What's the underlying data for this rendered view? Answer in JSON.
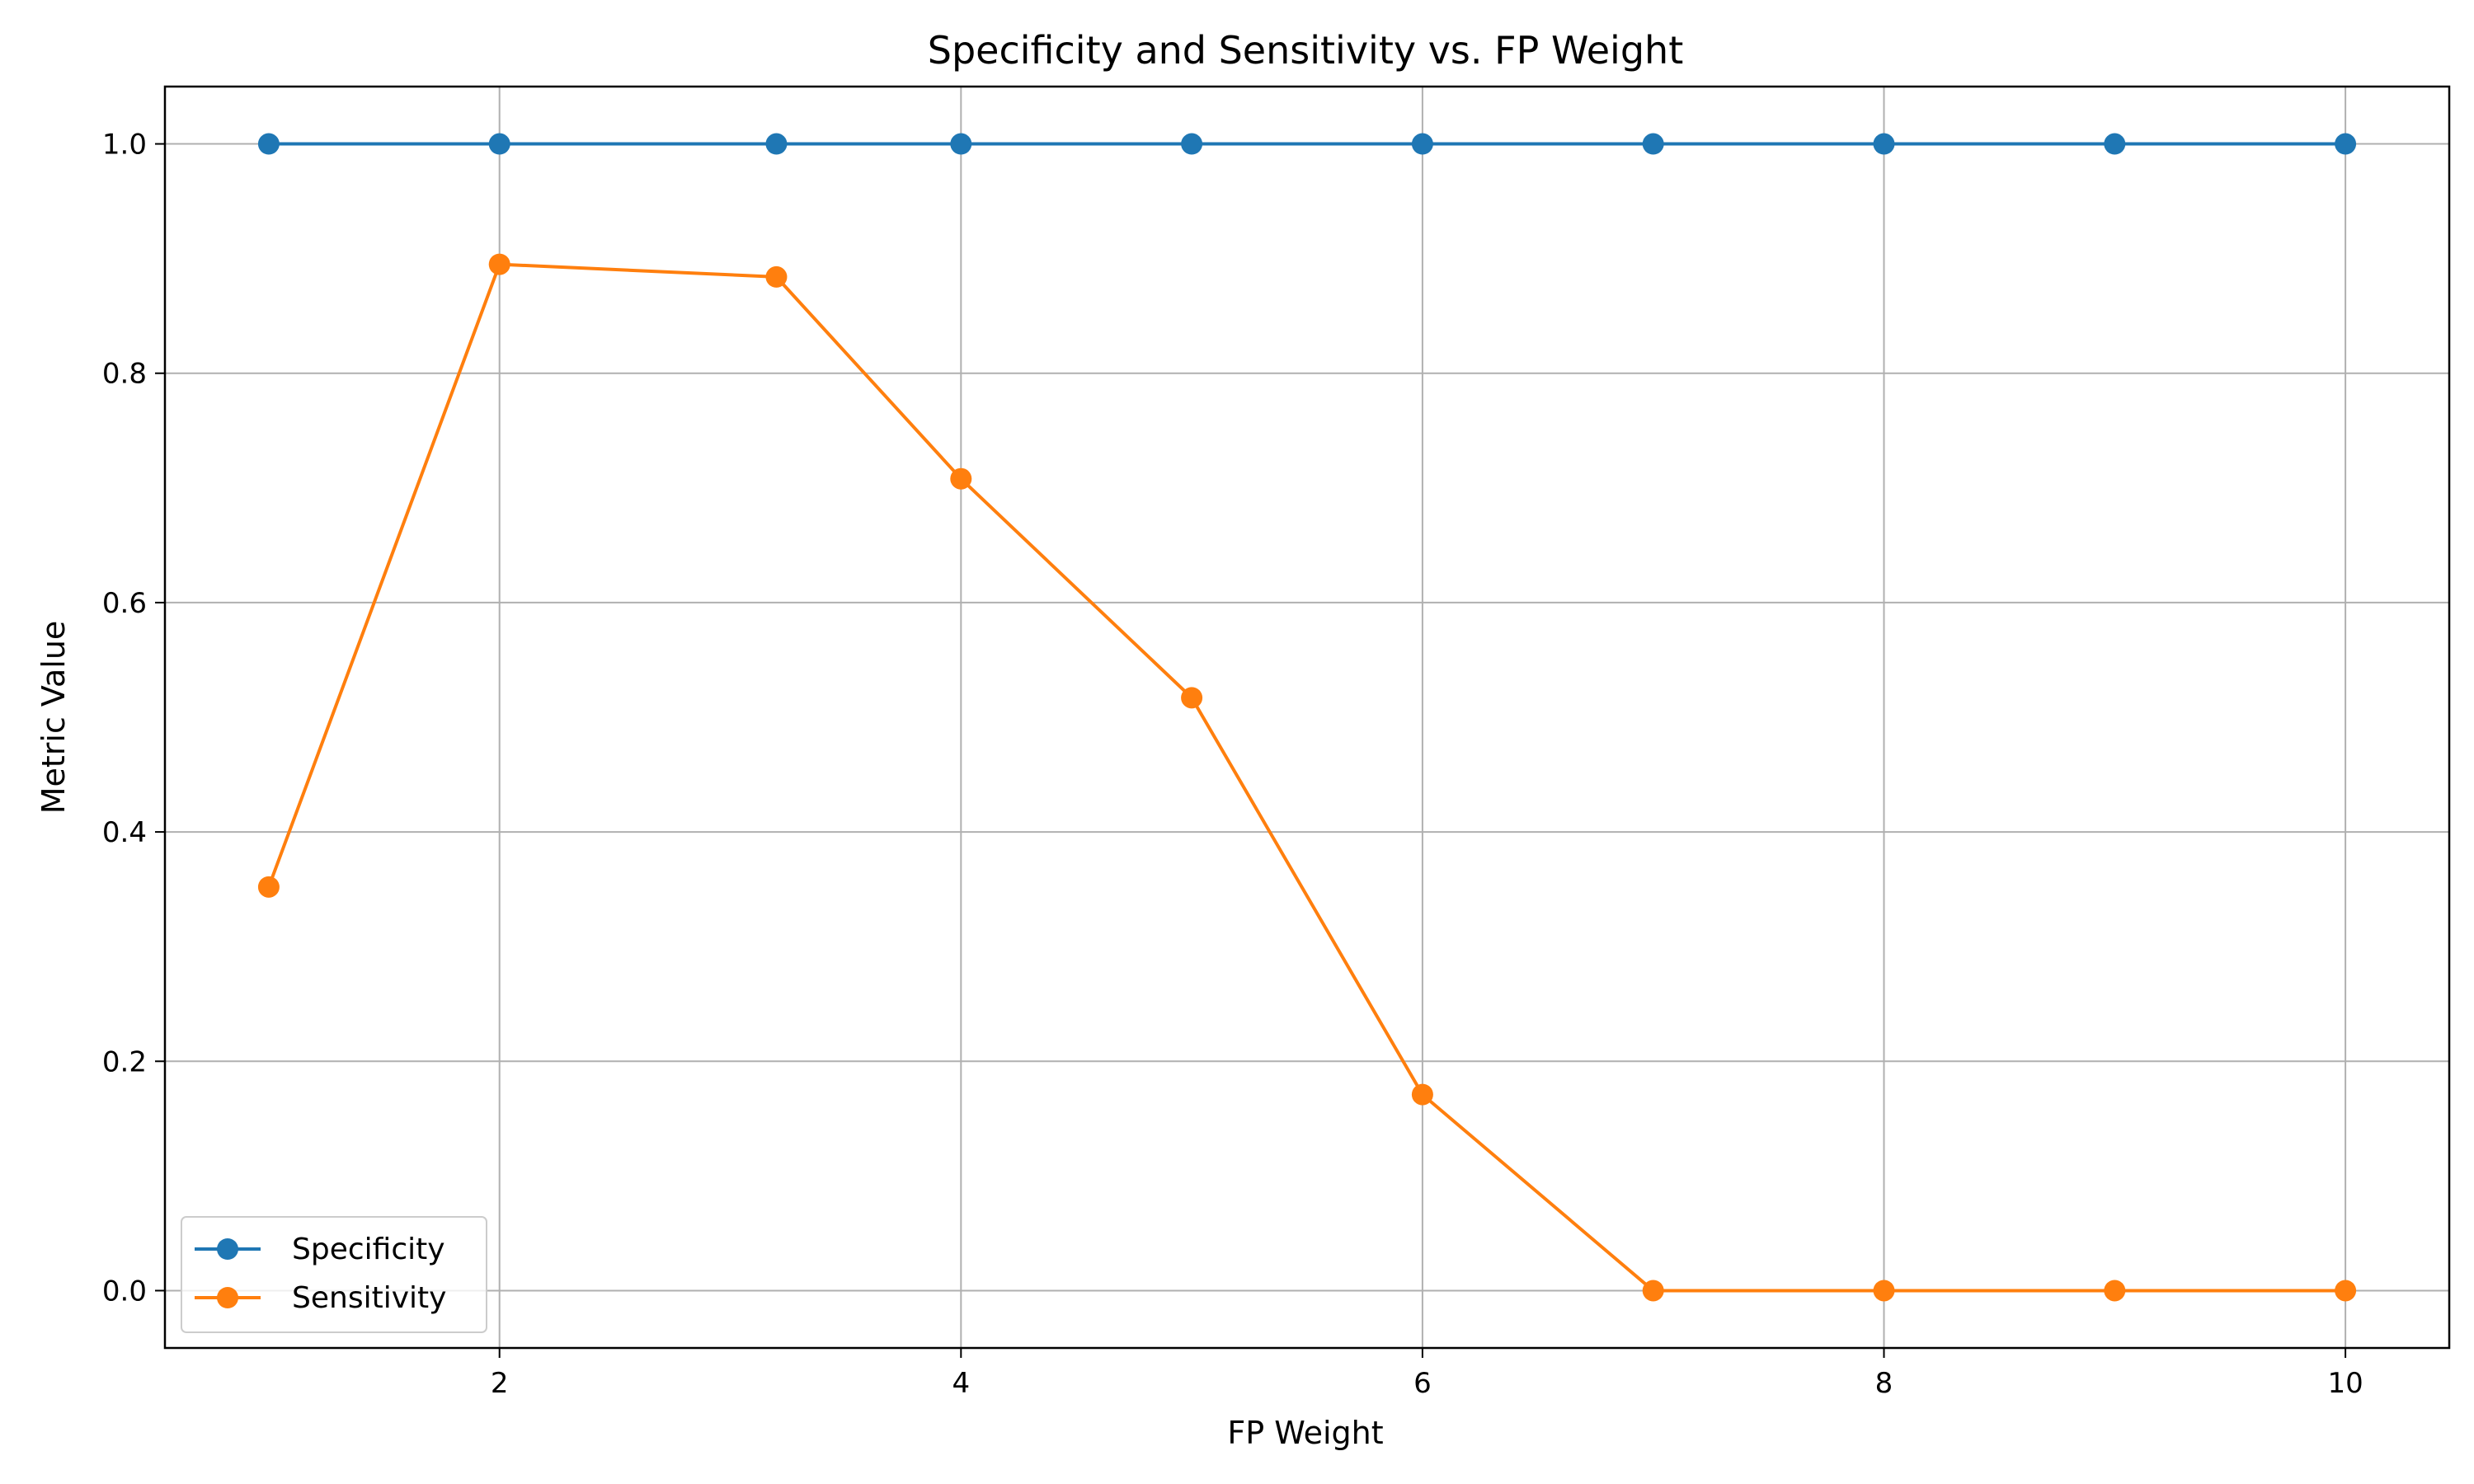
{
  "chart_data": {
    "type": "line",
    "title": "Specificity and Sensitivity vs. FP Weight",
    "xlabel": "FP Weight",
    "ylabel": "Metric Value",
    "xlim": [
      0.55,
      10.45
    ],
    "ylim": [
      -0.05,
      1.05
    ],
    "xticks": [
      2,
      4,
      6,
      8,
      10
    ],
    "yticks": [
      0.0,
      0.2,
      0.4,
      0.6,
      0.8,
      1.0
    ],
    "ytick_labels": [
      "0.0",
      "0.2",
      "0.4",
      "0.6",
      "0.8",
      "1.0"
    ],
    "grid": true,
    "legend_position": "lower-left",
    "x": [
      1,
      2,
      3.2,
      4,
      5,
      6,
      7,
      8,
      9,
      10
    ],
    "series": [
      {
        "name": "Specificity",
        "color": "#1f77b4",
        "marker": "circle",
        "values": [
          1.0,
          1.0,
          1.0,
          1.0,
          1.0,
          1.0,
          1.0,
          1.0,
          1.0,
          1.0
        ]
      },
      {
        "name": "Sensitivity",
        "color": "#ff7f0e",
        "marker": "circle",
        "values": [
          0.352,
          0.895,
          0.884,
          0.708,
          0.517,
          0.171,
          0.0,
          0.0,
          0.0,
          0.0
        ]
      }
    ]
  }
}
